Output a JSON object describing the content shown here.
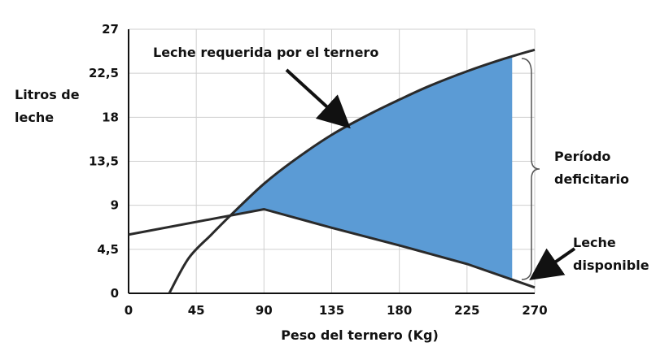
{
  "chart_data": {
    "type": "line",
    "title": "",
    "xlabel": "Peso del ternero (Kg)",
    "ylabel": [
      "Litros de",
      "leche"
    ],
    "xlim": [
      0,
      270
    ],
    "ylim": [
      0,
      27
    ],
    "x_ticks": [
      "0",
      "45",
      "90",
      "135",
      "180",
      "225",
      "270"
    ],
    "y_ticks": [
      "0",
      "4,5",
      "9",
      "13,5",
      "18",
      "22,5",
      "27"
    ],
    "grid": true,
    "series": [
      {
        "name": "Leche requerida por el ternero",
        "x": [
          27,
          40,
          55,
          70,
          90,
          110,
          135,
          160,
          180,
          200,
          225,
          250,
          270
        ],
        "y": [
          0,
          3.6,
          6.0,
          8.3,
          11.2,
          13.6,
          16.2,
          18.3,
          19.8,
          21.2,
          22.7,
          24.0,
          24.9
        ]
      },
      {
        "name": "Leche disponible",
        "x": [
          0,
          90,
          135,
          180,
          225,
          270
        ],
        "y": [
          6.0,
          8.6,
          6.7,
          4.9,
          3.0,
          0.6
        ]
      }
    ],
    "shaded_region": {
      "label": [
        "Período",
        "deficitario"
      ],
      "x_from": 70,
      "x_to": 255,
      "color": "#5b9bd5"
    },
    "annotations": [
      {
        "text": "Leche requerida por el ternero",
        "target_series": 0
      },
      {
        "text": [
          "Leche",
          "disponible"
        ],
        "target_series": 1
      }
    ]
  }
}
